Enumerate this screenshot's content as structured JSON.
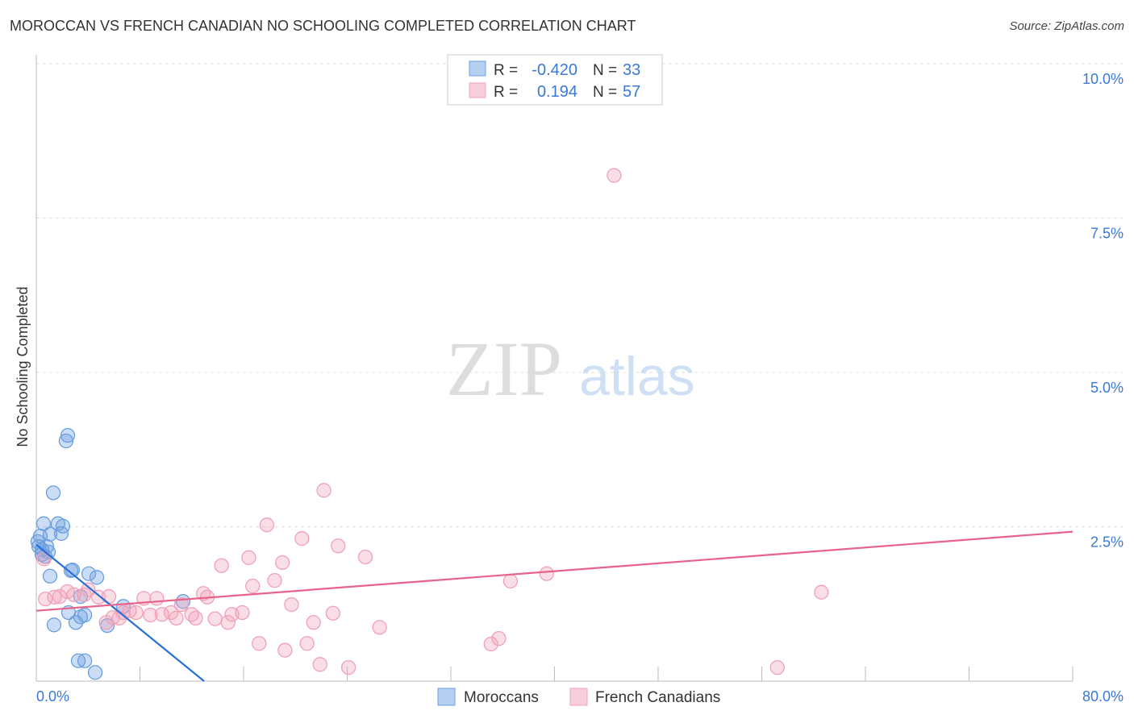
{
  "chart_data": {
    "type": "scatter",
    "title": "MOROCCAN VS FRENCH CANADIAN NO SCHOOLING COMPLETED CORRELATION CHART",
    "source": "Source: ZipAtlas.com",
    "ylabel": "No Schooling Completed",
    "xlim": [
      0,
      80
    ],
    "ylim": [
      0,
      10
    ],
    "x_tick_labels": [
      "0.0%",
      "80.0%"
    ],
    "y_ticks": [
      2.5,
      5.0,
      7.5,
      10.0
    ],
    "y_tick_labels": [
      "2.5%",
      "5.0%",
      "7.5%",
      "10.0%"
    ],
    "legend": {
      "r_label": "R =",
      "n_label": "N =",
      "rows": [
        {
          "r": "-0.420",
          "n": "33"
        },
        {
          "r": "0.194",
          "n": "57"
        }
      ]
    },
    "watermark": {
      "zip": "ZIP",
      "atlas": "atlas"
    },
    "series": [
      {
        "name": "Moroccans",
        "color": "#6a9fe0",
        "line_color": "#2a6fd6",
        "trend": [
          [
            0,
            2.21
          ],
          [
            12.95,
            0
          ]
        ],
        "points": [
          [
            2.43,
            3.98
          ],
          [
            2.3,
            3.89
          ],
          [
            1.31,
            3.05
          ],
          [
            0.56,
            2.55
          ],
          [
            1.68,
            2.55
          ],
          [
            1.06,
            2.38
          ],
          [
            2.05,
            2.51
          ],
          [
            1.93,
            2.39
          ],
          [
            0.31,
            2.35
          ],
          [
            0.19,
            2.18
          ],
          [
            0.81,
            2.18
          ],
          [
            0.44,
            2.05
          ],
          [
            0.68,
            2.02
          ],
          [
            1.06,
            1.7
          ],
          [
            2.8,
            1.8
          ],
          [
            2.68,
            1.79
          ],
          [
            4.05,
            1.74
          ],
          [
            4.67,
            1.68
          ],
          [
            2.49,
            1.11
          ],
          [
            3.42,
            1.04
          ],
          [
            3.74,
            1.07
          ],
          [
            3.05,
            0.95
          ],
          [
            1.37,
            0.91
          ],
          [
            5.48,
            0.9
          ],
          [
            6.72,
            1.21
          ],
          [
            11.33,
            1.29
          ],
          [
            3.24,
            0.33
          ],
          [
            3.74,
            0.33
          ],
          [
            4.55,
            0.14
          ],
          [
            0.12,
            2.26
          ],
          [
            3.42,
            1.37
          ],
          [
            0.44,
            2.13
          ],
          [
            0.93,
            2.09
          ]
        ]
      },
      {
        "name": "French Canadians",
        "color": "#f0a0b8",
        "line_color": "#e8628c",
        "trend": [
          [
            0,
            1.14
          ],
          [
            80,
            2.42
          ]
        ],
        "points": [
          [
            44.6,
            8.19
          ],
          [
            22.2,
            3.09
          ],
          [
            17.8,
            2.53
          ],
          [
            20.5,
            2.31
          ],
          [
            23.3,
            2.19
          ],
          [
            25.4,
            2.01
          ],
          [
            16.4,
            2.0
          ],
          [
            19.0,
            1.92
          ],
          [
            14.3,
            1.87
          ],
          [
            39.4,
            1.74
          ],
          [
            36.6,
            1.62
          ],
          [
            18.4,
            1.63
          ],
          [
            16.7,
            1.54
          ],
          [
            60.6,
            1.44
          ],
          [
            12.9,
            1.42
          ],
          [
            13.2,
            1.36
          ],
          [
            19.7,
            1.24
          ],
          [
            22.9,
            1.1
          ],
          [
            21.4,
            0.95
          ],
          [
            26.5,
            0.87
          ],
          [
            17.2,
            0.61
          ],
          [
            19.2,
            0.5
          ],
          [
            20.9,
            0.61
          ],
          [
            35.1,
            0.6
          ],
          [
            35.7,
            0.69
          ],
          [
            21.9,
            0.27
          ],
          [
            24.1,
            0.22
          ],
          [
            57.2,
            0.22
          ],
          [
            0.7,
            1.33
          ],
          [
            0.6,
            1.98
          ],
          [
            1.4,
            1.36
          ],
          [
            1.8,
            1.37
          ],
          [
            2.4,
            1.45
          ],
          [
            2.9,
            1.4
          ],
          [
            4.0,
            1.48
          ],
          [
            4.8,
            1.36
          ],
          [
            3.7,
            1.4
          ],
          [
            5.6,
            1.37
          ],
          [
            6.7,
            1.11
          ],
          [
            7.2,
            1.14
          ],
          [
            8.3,
            1.34
          ],
          [
            9.3,
            1.34
          ],
          [
            7.7,
            1.11
          ],
          [
            8.8,
            1.07
          ],
          [
            9.7,
            1.08
          ],
          [
            10.4,
            1.11
          ],
          [
            11.2,
            1.24
          ],
          [
            10.8,
            1.02
          ],
          [
            12.0,
            1.08
          ],
          [
            12.3,
            1.02
          ],
          [
            13.8,
            1.01
          ],
          [
            14.8,
            0.95
          ],
          [
            15.1,
            1.08
          ],
          [
            15.9,
            1.11
          ],
          [
            5.4,
            0.95
          ],
          [
            5.9,
            1.03
          ],
          [
            6.4,
            1.02
          ]
        ]
      }
    ]
  }
}
